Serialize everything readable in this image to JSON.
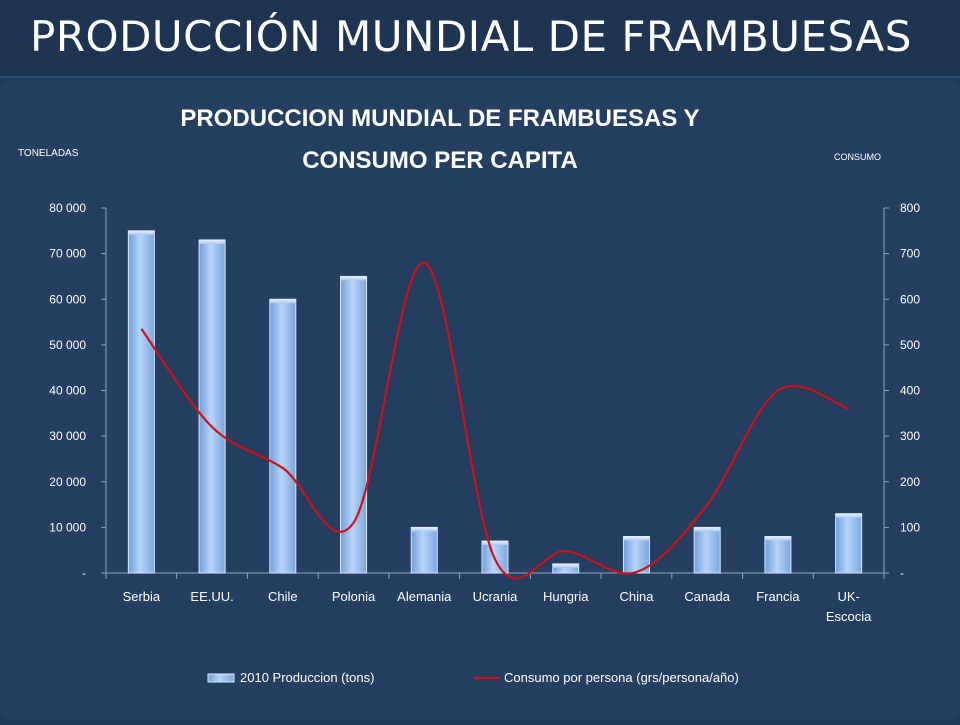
{
  "slide": {
    "title": "PRODUCCIÓN MUNDIAL DE FRAMBUESAS"
  },
  "chart_data": {
    "type": "bar",
    "title_line1": "PRODUCCION MUNDIAL DE FRAMBUESAS Y",
    "title_line2": "CONSUMO PER CAPITA",
    "ylabel_left": "TONELADAS",
    "ylabel_right": "CONSUMO",
    "categories": [
      "Serbia",
      "EE.UU.",
      "Chile",
      "Polonia",
      "Alemania",
      "Ucrania",
      "Hungria",
      "China",
      "Canada",
      "Francia",
      "UK-Escocia"
    ],
    "category_lines": [
      [
        "Serbia"
      ],
      [
        "EE.UU."
      ],
      [
        "Chile"
      ],
      [
        "Polonia"
      ],
      [
        "Alemania"
      ],
      [
        "Ucrania"
      ],
      [
        "Hungria"
      ],
      [
        "China"
      ],
      [
        "Canada"
      ],
      [
        "Francia"
      ],
      [
        "UK-",
        "Escocia"
      ]
    ],
    "left_axis": {
      "min": 0,
      "max": 80000,
      "ticks": [
        0,
        10000,
        20000,
        30000,
        40000,
        50000,
        60000,
        70000,
        80000
      ],
      "tick_labels": [
        "-",
        "10 000",
        "20 000",
        "30 000",
        "40 000",
        "50 000",
        "60 000",
        "70 000",
        "80 000"
      ]
    },
    "right_axis": {
      "min": 0,
      "max": 800,
      "ticks": [
        0,
        100,
        200,
        300,
        400,
        500,
        600,
        700,
        800
      ],
      "tick_labels": [
        "-",
        "100",
        "200",
        "300",
        "400",
        "500",
        "600",
        "700",
        "800"
      ]
    },
    "series": [
      {
        "name": "2010 Produccion (tons)",
        "type": "bar",
        "axis": "left",
        "color": "#9dc3f0",
        "values": [
          75000,
          73000,
          60000,
          65000,
          10000,
          7000,
          2000,
          8000,
          10000,
          8000,
          13000
        ]
      },
      {
        "name": "Consumo por persona (grs/persona/año)",
        "type": "line",
        "axis": "right",
        "smooth": true,
        "color": "#d0101a",
        "values": [
          535,
          320,
          230,
          110,
          680,
          30,
          48,
          2,
          150,
          400,
          360
        ]
      }
    ],
    "grid": false,
    "legend_position": "bottom"
  }
}
